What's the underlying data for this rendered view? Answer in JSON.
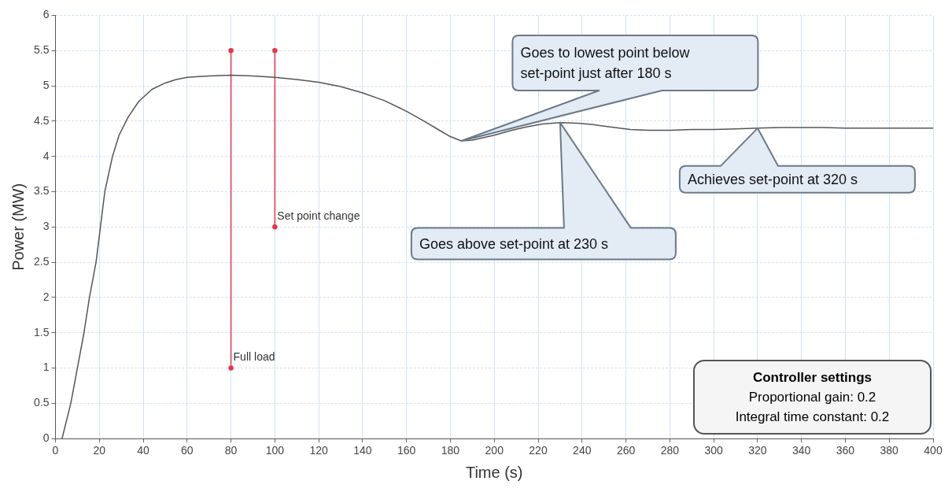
{
  "chart_data": {
    "type": "line",
    "xlabel": "Time (s)",
    "ylabel": "Power (MW)",
    "xlim": [
      0,
      400
    ],
    "xticks": [
      0,
      20,
      40,
      60,
      80,
      100,
      120,
      140,
      160,
      180,
      200,
      220,
      240,
      260,
      280,
      300,
      320,
      340,
      360,
      380,
      400
    ],
    "ylim": [
      0,
      6
    ],
    "yticks": [
      0,
      0.5,
      1,
      1.5,
      2,
      2.5,
      3,
      3.5,
      4,
      4.5,
      5,
      5.5,
      6
    ],
    "grid": true,
    "legend": false,
    "series": [
      {
        "color": "#555555",
        "marker": "none",
        "x": [
          3,
          5,
          7,
          10,
          13,
          15.5,
          18.5,
          20.5,
          22.5,
          26,
          29,
          33,
          38,
          44,
          50,
          55,
          60,
          70,
          80,
          90,
          100,
          110,
          120,
          130,
          140,
          150,
          160,
          168,
          175,
          180,
          185,
          190,
          200,
          208,
          215,
          222,
          230,
          238,
          245,
          255,
          262,
          270,
          280,
          290,
          300,
          310,
          320,
          330,
          340,
          350,
          360,
          370,
          380,
          390,
          400
        ],
        "values": [
          0,
          0.25,
          0.5,
          1,
          1.5,
          2,
          2.5,
          3,
          3.5,
          4,
          4.3,
          4.55,
          4.78,
          4.95,
          5.04,
          5.09,
          5.12,
          5.14,
          5.15,
          5.14,
          5.12,
          5.09,
          5.05,
          4.99,
          4.9,
          4.79,
          4.64,
          4.5,
          4.37,
          4.28,
          4.22,
          4.23,
          4.3,
          4.37,
          4.42,
          4.46,
          4.48,
          4.47,
          4.45,
          4.41,
          4.38,
          4.37,
          4.37,
          4.38,
          4.38,
          4.39,
          4.4,
          4.41,
          4.41,
          4.41,
          4.4,
          4.4,
          4.4,
          4.4,
          4.4
        ]
      },
      {
        "color": "#e8344a",
        "marker": "circle",
        "x": [
          80,
          80
        ],
        "values": [
          1,
          5.5
        ]
      },
      {
        "color": "#e8344a",
        "marker": "circle",
        "x": [
          100,
          100
        ],
        "values": [
          3,
          5.5
        ]
      }
    ],
    "annotations": [
      {
        "text": "Full load",
        "x": 80,
        "y": 1
      },
      {
        "text": "Set point change",
        "x": 100,
        "y": 3
      },
      "Goes to lowest point below\nset-point just after 180 s",
      "Goes above set-point at 230 s",
      "Achieves set-point at 320 s",
      "Controller settings\nProportional gain: 0.2\nIntegral time constant: 0.2"
    ]
  }
}
